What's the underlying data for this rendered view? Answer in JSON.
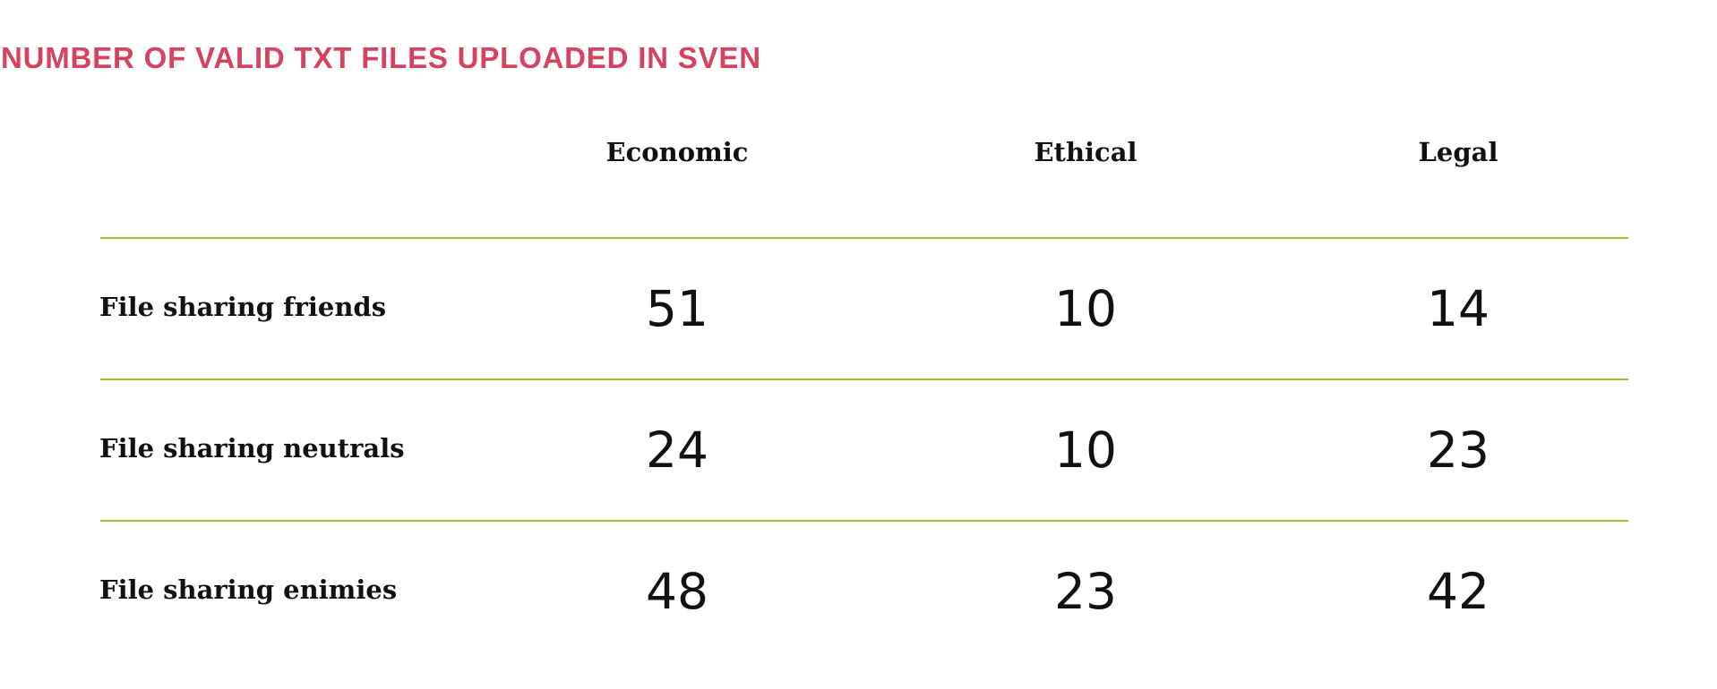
{
  "accent_color": "#d6435f",
  "rule_color": "#a9c21b",
  "chart_data": {
    "type": "table",
    "title": "NUMBER OF VALID TXT FILES UPLOADED IN SVEN",
    "columns": [
      "Economic",
      "Ethical",
      "Legal"
    ],
    "rows": [
      {
        "label": "File sharing friends",
        "values": [
          51,
          10,
          14
        ]
      },
      {
        "label": "File sharing neutrals",
        "values": [
          24,
          10,
          23
        ]
      },
      {
        "label": "File sharing enimies",
        "values": [
          48,
          23,
          42
        ]
      }
    ]
  }
}
